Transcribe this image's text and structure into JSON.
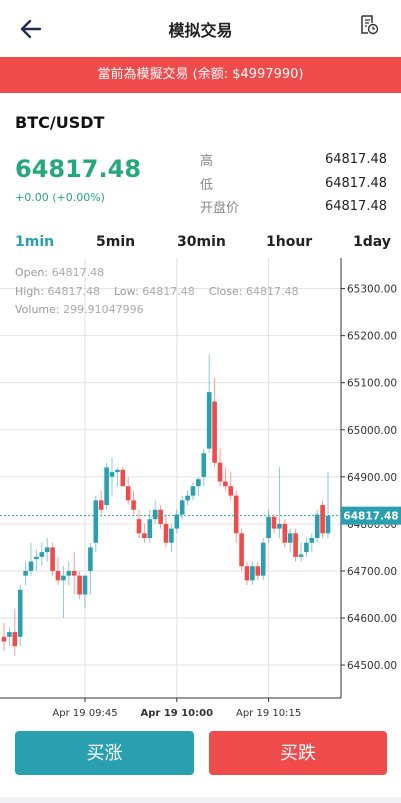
{
  "header": {
    "title": "模拟交易",
    "back_icon": "back-arrow-icon",
    "history_icon": "order-history-icon"
  },
  "banner": {
    "text": "當前為模擬交易 (余额: $4997990)"
  },
  "market": {
    "pair": "BTC/USDT",
    "price": "64817.48",
    "change": "+0.00 (+0.00%)",
    "stats": [
      {
        "label": "高",
        "value": "64817.48"
      },
      {
        "label": "低",
        "value": "64817.48"
      },
      {
        "label": "开盘价",
        "value": "64817.48"
      }
    ]
  },
  "tabs": [
    {
      "label": "1min",
      "active": true
    },
    {
      "label": "5min",
      "active": false
    },
    {
      "label": "30min",
      "active": false
    },
    {
      "label": "1hour",
      "active": false
    },
    {
      "label": "1day",
      "active": false
    }
  ],
  "ohlc": {
    "open_label": "Open:",
    "open": "64817.48",
    "high_label": "High:",
    "high": "64817.48",
    "low_label": "Low:",
    "low": "64817.48",
    "close_label": "Close:",
    "close": "64817.48",
    "volume_label": "Volume:",
    "volume": "299.91047996"
  },
  "chart_data": {
    "type": "candlestick",
    "y_ticks": [
      "65300.00",
      "65200.00",
      "65100.00",
      "65000.00",
      "64900.00",
      "64800.00",
      "64700.00",
      "64600.00",
      "64500.00"
    ],
    "ylim": [
      64430,
      65365
    ],
    "x_ticks": [
      {
        "label": "Apr 19 09:45",
        "bold": false
      },
      {
        "label": "Apr 19 10:00",
        "bold": true
      },
      {
        "label": "Apr 19 10:15",
        "bold": false
      }
    ],
    "current_price": "64817.48",
    "up_color": "#2a9fb0",
    "down_color": "#ef4b4b",
    "candles": [
      {
        "o": 64560,
        "h": 64590,
        "l": 64530,
        "c": 64550
      },
      {
        "o": 64560,
        "h": 64580,
        "l": 64540,
        "c": 64570
      },
      {
        "o": 64570,
        "h": 64620,
        "l": 64520,
        "c": 64540
      },
      {
        "o": 64560,
        "h": 64670,
        "l": 64540,
        "c": 64660
      },
      {
        "o": 64690,
        "h": 64720,
        "l": 64670,
        "c": 64700
      },
      {
        "o": 64700,
        "h": 64760,
        "l": 64690,
        "c": 64720
      },
      {
        "o": 64725,
        "h": 64745,
        "l": 64700,
        "c": 64730
      },
      {
        "o": 64730,
        "h": 64760,
        "l": 64710,
        "c": 64740
      },
      {
        "o": 64740,
        "h": 64770,
        "l": 64720,
        "c": 64750
      },
      {
        "o": 64750,
        "h": 64760,
        "l": 64690,
        "c": 64700
      },
      {
        "o": 64700,
        "h": 64730,
        "l": 64670,
        "c": 64680
      },
      {
        "o": 64680,
        "h": 64710,
        "l": 64600,
        "c": 64690
      },
      {
        "o": 64690,
        "h": 64720,
        "l": 64670,
        "c": 64700
      },
      {
        "o": 64700,
        "h": 64740,
        "l": 64650,
        "c": 64690
      },
      {
        "o": 64690,
        "h": 64700,
        "l": 64640,
        "c": 64650
      },
      {
        "o": 64650,
        "h": 64690,
        "l": 64620,
        "c": 64690
      },
      {
        "o": 64700,
        "h": 64760,
        "l": 64650,
        "c": 64750
      },
      {
        "o": 64760,
        "h": 64860,
        "l": 64740,
        "c": 64850
      },
      {
        "o": 64850,
        "h": 64870,
        "l": 64820,
        "c": 64830
      },
      {
        "o": 64840,
        "h": 64930,
        "l": 64830,
        "c": 64920
      },
      {
        "o": 64900,
        "h": 64940,
        "l": 64860,
        "c": 64910
      },
      {
        "o": 64910,
        "h": 64920,
        "l": 64880,
        "c": 64915
      },
      {
        "o": 64915,
        "h": 64920,
        "l": 64880,
        "c": 64880
      },
      {
        "o": 64880,
        "h": 64900,
        "l": 64840,
        "c": 64850
      },
      {
        "o": 64850,
        "h": 64870,
        "l": 64820,
        "c": 64830
      },
      {
        "o": 64810,
        "h": 64830,
        "l": 64770,
        "c": 64780
      },
      {
        "o": 64780,
        "h": 64800,
        "l": 64760,
        "c": 64770
      },
      {
        "o": 64770,
        "h": 64830,
        "l": 64760,
        "c": 64810
      },
      {
        "o": 64810,
        "h": 64850,
        "l": 64800,
        "c": 64830
      },
      {
        "o": 64830,
        "h": 64840,
        "l": 64790,
        "c": 64800
      },
      {
        "o": 64800,
        "h": 64820,
        "l": 64750,
        "c": 64760
      },
      {
        "o": 64760,
        "h": 64800,
        "l": 64740,
        "c": 64790
      },
      {
        "o": 64790,
        "h": 64830,
        "l": 64780,
        "c": 64820
      },
      {
        "o": 64820,
        "h": 64860,
        "l": 64810,
        "c": 64850
      },
      {
        "o": 64850,
        "h": 64870,
        "l": 64840,
        "c": 64860
      },
      {
        "o": 64860,
        "h": 64890,
        "l": 64850,
        "c": 64880
      },
      {
        "o": 64880,
        "h": 64900,
        "l": 64860,
        "c": 64895
      },
      {
        "o": 64900,
        "h": 64960,
        "l": 64880,
        "c": 64950
      },
      {
        "o": 64960,
        "h": 65160,
        "l": 64950,
        "c": 65080
      },
      {
        "o": 65060,
        "h": 65110,
        "l": 64920,
        "c": 64930
      },
      {
        "o": 64930,
        "h": 64960,
        "l": 64880,
        "c": 64890
      },
      {
        "o": 64890,
        "h": 64920,
        "l": 64870,
        "c": 64880
      },
      {
        "o": 64880,
        "h": 64910,
        "l": 64850,
        "c": 64860
      },
      {
        "o": 64860,
        "h": 64870,
        "l": 64760,
        "c": 64780
      },
      {
        "o": 64780,
        "h": 64790,
        "l": 64700,
        "c": 64710
      },
      {
        "o": 64710,
        "h": 64720,
        "l": 64670,
        "c": 64680
      },
      {
        "o": 64680,
        "h": 64720,
        "l": 64670,
        "c": 64710
      },
      {
        "o": 64710,
        "h": 64720,
        "l": 64680,
        "c": 64690
      },
      {
        "o": 64690,
        "h": 64770,
        "l": 64680,
        "c": 64760
      },
      {
        "o": 64770,
        "h": 64830,
        "l": 64760,
        "c": 64815
      },
      {
        "o": 64815,
        "h": 64820,
        "l": 64780,
        "c": 64790
      },
      {
        "o": 64790,
        "h": 64920,
        "l": 64770,
        "c": 64800
      },
      {
        "o": 64800,
        "h": 64810,
        "l": 64750,
        "c": 64760
      },
      {
        "o": 64760,
        "h": 64790,
        "l": 64740,
        "c": 64780
      },
      {
        "o": 64780,
        "h": 64790,
        "l": 64720,
        "c": 64730
      },
      {
        "o": 64730,
        "h": 64760,
        "l": 64720,
        "c": 64735
      },
      {
        "o": 64740,
        "h": 64770,
        "l": 64730,
        "c": 64760
      },
      {
        "o": 64760,
        "h": 64780,
        "l": 64740,
        "c": 64770
      },
      {
        "o": 64770,
        "h": 64830,
        "l": 64760,
        "c": 64820
      },
      {
        "o": 64840,
        "h": 64850,
        "l": 64770,
        "c": 64780
      },
      {
        "o": 64780,
        "h": 64910,
        "l": 64770,
        "c": 64817
      }
    ]
  },
  "actions": {
    "buy_up": "买涨",
    "buy_down": "买跌"
  }
}
